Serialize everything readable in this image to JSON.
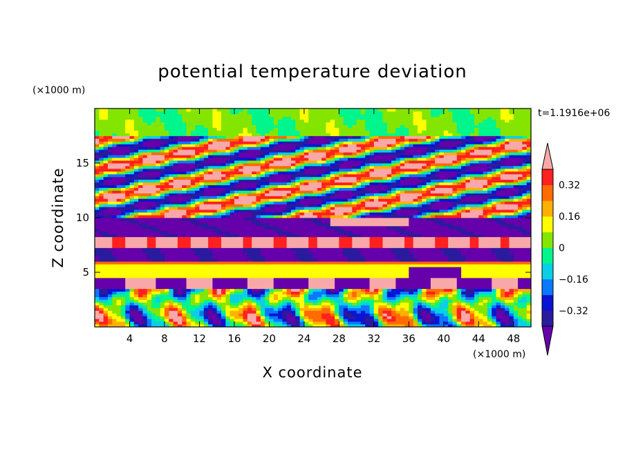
{
  "chart_data": {
    "type": "heatmap",
    "title": "potential temperature deviation",
    "xlabel": "X coordinate",
    "ylabel": "Z coordinate",
    "x_unit": "(×1000 m)",
    "y_unit": "(×1000 m)",
    "time_label": "t=1.1916e+06",
    "xlim": [
      0,
      50
    ],
    "ylim": [
      0,
      20
    ],
    "x_ticks": [
      4,
      8,
      12,
      16,
      20,
      24,
      28,
      32,
      36,
      40,
      44,
      48
    ],
    "y_ticks": [
      5,
      10,
      15
    ],
    "colorbar": {
      "levels": [
        -0.4,
        -0.32,
        -0.24,
        -0.16,
        -0.08,
        0,
        0.08,
        0.16,
        0.24,
        0.32,
        0.4
      ],
      "labeled_levels": [
        0.32,
        0.16,
        0,
        -0.16,
        -0.32
      ],
      "colors": [
        "#6600aa",
        "#2a1a9e",
        "#0a14d2",
        "#0a78ff",
        "#0acfe6",
        "#00f58c",
        "#84e600",
        "#ffff00",
        "#ffb000",
        "#ff6b00",
        "#ff2020",
        "#f8a8a8"
      ],
      "extend": "both"
    },
    "field_bands": [
      {
        "z": [
          17.5,
          20
        ],
        "description": "near-neutral upper layer"
      },
      {
        "z": [
          10,
          17
        ],
        "description": "tilted wave bands"
      },
      {
        "z": [
          6,
          10
        ],
        "description": "strong positive/negative layers"
      },
      {
        "z": [
          4,
          6
        ],
        "description": "inversion layer"
      },
      {
        "z": [
          0,
          4
        ],
        "description": "convective plumes"
      }
    ]
  }
}
